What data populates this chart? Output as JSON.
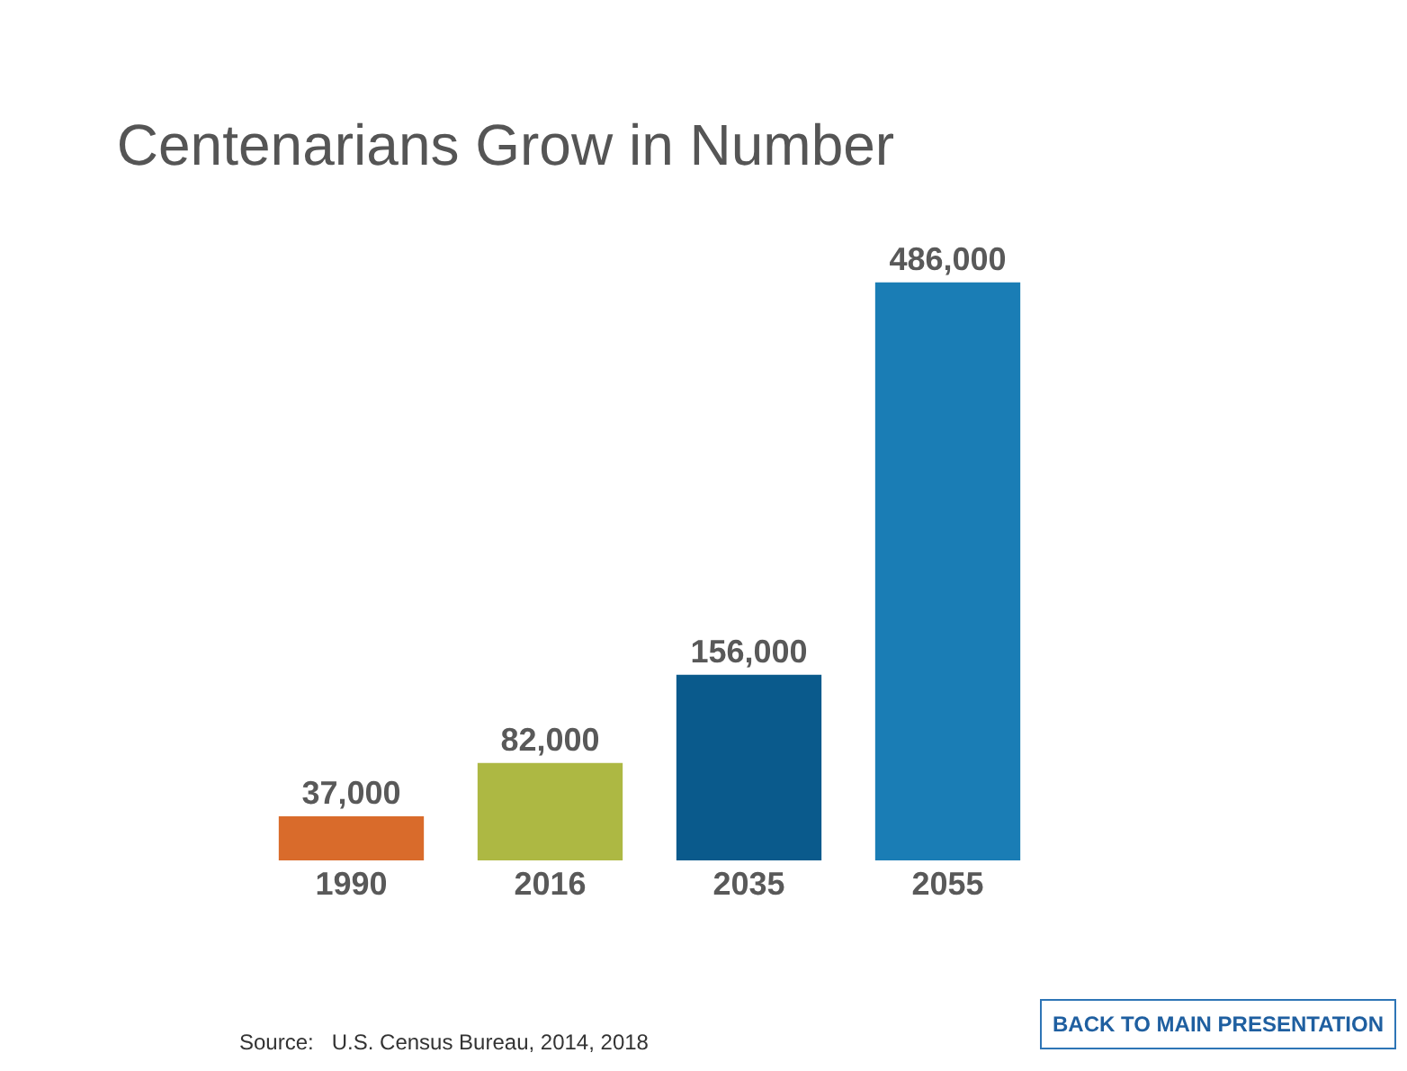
{
  "chart_data": {
    "type": "bar",
    "title": "Centenarians Grow in Number",
    "categories": [
      "1990",
      "2016",
      "2035",
      "2055"
    ],
    "values": [
      37000,
      82000,
      156000,
      486000
    ],
    "colors": [
      "#d96b2b",
      "#adb843",
      "#0a5a8c",
      "#1a7db5"
    ],
    "value_labels": [
      "37,000",
      "82,000",
      "156,000",
      "486,000"
    ],
    "annotations": [
      "Source:   U.S. Census Bureau, 2014, 2018",
      "BACK TO MAIN PRESENTATION"
    ]
  }
}
